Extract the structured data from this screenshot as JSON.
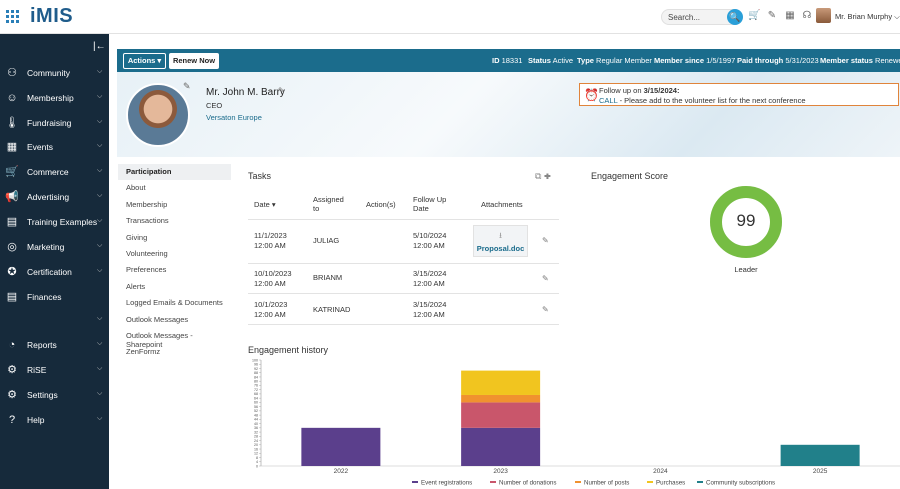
{
  "app": {
    "logo": "iMIS"
  },
  "topbar": {
    "search_placeholder": "Search...",
    "search_go": "🔍",
    "user_name": "Mr. Brian Murphy ⌵"
  },
  "sidebar": {
    "items": [
      {
        "label": "Community",
        "icon": "people-icon",
        "glyph": "⚇",
        "chevron": "⌵"
      },
      {
        "label": "Membership",
        "icon": "member-icon",
        "glyph": "☺",
        "chevron": "⌵"
      },
      {
        "label": "Fundraising",
        "icon": "thermometer-icon",
        "glyph": "🌡",
        "chevron": "⌵"
      },
      {
        "label": "Events",
        "icon": "calendar-icon",
        "glyph": "▦",
        "chevron": "⌵"
      },
      {
        "label": "Commerce",
        "icon": "cart-icon",
        "glyph": "🛒",
        "chevron": "⌵"
      },
      {
        "label": "Advertising",
        "icon": "megaphone-icon",
        "glyph": "📢",
        "chevron": "⌵"
      },
      {
        "label": "Training Examples",
        "icon": "document-icon",
        "glyph": "▤",
        "chevron": "⌵"
      },
      {
        "label": "Marketing",
        "icon": "target-icon",
        "glyph": "◎",
        "chevron": "⌵"
      },
      {
        "label": "Certification",
        "icon": "badge-icon",
        "glyph": "✪",
        "chevron": "⌵"
      },
      {
        "label": "Finances",
        "icon": "ledger-icon",
        "glyph": "▤",
        "chevron": ""
      },
      {
        "label": "",
        "icon": "",
        "glyph": "",
        "chevron": "⌵"
      },
      {
        "label": "Reports",
        "icon": "pie-chart-icon",
        "glyph": "◔",
        "chevron": "⌵"
      },
      {
        "label": "RiSE",
        "icon": "rise-icon",
        "glyph": "⚙",
        "chevron": "⌵"
      },
      {
        "label": "Settings",
        "icon": "settings-icon",
        "glyph": "⚙",
        "chevron": "⌵"
      },
      {
        "label": "Help",
        "icon": "help-icon",
        "glyph": "?",
        "chevron": "⌵"
      }
    ]
  },
  "banner": {
    "actions_label": "Actions ▾",
    "renew_label": "Renew Now",
    "meta": [
      {
        "key": "ID",
        "value": "18331"
      },
      {
        "key": "Status",
        "value": "Active"
      },
      {
        "key": "Type",
        "value": "Regular Member"
      },
      {
        "key": "Member since",
        "value": "1/5/1997"
      },
      {
        "key": "Paid through",
        "value": "5/31/2023"
      },
      {
        "key": "Member status",
        "value": "Renewed"
      }
    ],
    "name": "Mr. John M. Barry",
    "title": "CEO",
    "organization": "Versaton Europe",
    "followup_prefix": "Follow up on ",
    "followup_date": "3/15/2024:",
    "followup_link": "CALL",
    "followup_text": " - Please add to the volunteer list for the next conference"
  },
  "leftnav": {
    "items": [
      "Participation",
      "About",
      "Membership",
      "Transactions",
      "Giving",
      "Volunteering",
      "Preferences",
      "Alerts",
      "Logged Emails & Documents",
      "Outlook Messages",
      "Outlook Messages - Sharepoint",
      "ZenFormz"
    ],
    "active_index": 0
  },
  "tasks": {
    "title": "Tasks",
    "headers": {
      "date": "Date ▾",
      "assigned_1": "Assigned",
      "assigned_2": "to",
      "actions": "Action(s)",
      "followup_1": "Follow Up",
      "followup_2": "Date",
      "attachments": "Attachments"
    },
    "rows": [
      {
        "date_1": "11/1/2023",
        "date_2": "12:00 AM",
        "assigned": "JULIAG",
        "followup_1": "5/10/2024",
        "followup_2": "12:00 AM",
        "attachment": "Proposal.doc"
      },
      {
        "date_1": "10/10/2023",
        "date_2": "12:00 AM",
        "assigned": "BRIANM",
        "followup_1": "3/15/2024",
        "followup_2": "12:00 AM",
        "attachment": ""
      },
      {
        "date_1": "10/1/2023",
        "date_2": "12:00 AM",
        "assigned": "KATRINAD",
        "followup_1": "3/15/2024",
        "followup_2": "12:00 AM",
        "attachment": ""
      }
    ]
  },
  "engagement": {
    "title": "Engagement Score",
    "score": "99",
    "level": "Leader",
    "score_fraction": 1.0,
    "color": "#76bd43"
  },
  "history": {
    "title": "Engagement history"
  },
  "chart_data": {
    "type": "bar",
    "stacked": true,
    "categories": [
      "2022",
      "2023",
      "2024",
      "2025"
    ],
    "series": [
      {
        "name": "Event registrations",
        "color": "#5b3f8c",
        "values": [
          36,
          36,
          0,
          0
        ]
      },
      {
        "name": "Number of donations",
        "color": "#c9566b",
        "values": [
          0,
          24,
          0,
          0
        ]
      },
      {
        "name": "Number of posts",
        "color": "#f0922f",
        "values": [
          0,
          7,
          0,
          0
        ]
      },
      {
        "name": "Purchases",
        "color": "#f1c51f",
        "values": [
          0,
          23,
          0,
          0
        ]
      },
      {
        "name": "Community subscriptions",
        "color": "#21808a",
        "values": [
          0,
          0,
          0,
          20
        ]
      }
    ],
    "ylim": [
      0,
      100
    ],
    "grid": false,
    "legend": "bottom"
  }
}
